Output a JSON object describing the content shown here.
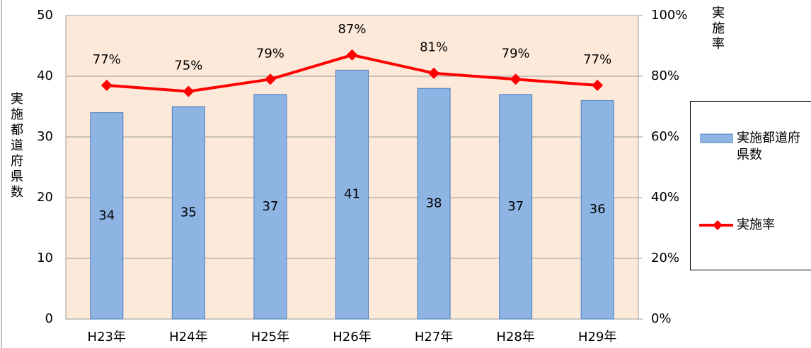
{
  "chart_data": {
    "type": "bar_line",
    "categories": [
      "H23年",
      "H24年",
      "H25年",
      "H26年",
      "H27年",
      "H28年",
      "H29年"
    ],
    "ylabel": "実施都道府県数",
    "y2label": "実施率",
    "ylim": [
      0,
      50
    ],
    "yticks": [
      0,
      10,
      20,
      30,
      40,
      50
    ],
    "y2lim": [
      0,
      100
    ],
    "y2ticks": [
      {
        "value": 0,
        "label": "0%"
      },
      {
        "value": 20,
        "label": "20%"
      },
      {
        "value": 40,
        "label": "40%"
      },
      {
        "value": 60,
        "label": "60%"
      },
      {
        "value": 80,
        "label": "80%"
      },
      {
        "value": 100,
        "label": "100%"
      }
    ],
    "grid": true,
    "legend": "right",
    "series": [
      {
        "name": "実施都道府県数",
        "type": "bar",
        "color": "#8db4e2",
        "values": [
          34,
          35,
          37,
          41,
          38,
          37,
          36
        ]
      },
      {
        "name": "実施率",
        "type": "line",
        "axis": "y2",
        "color": "#ff0000",
        "values": [
          77,
          75,
          79,
          87,
          81,
          79,
          77
        ],
        "value_labels": [
          "77%",
          "75%",
          "79%",
          "87%",
          "81%",
          "79%",
          "77%"
        ]
      }
    ]
  }
}
